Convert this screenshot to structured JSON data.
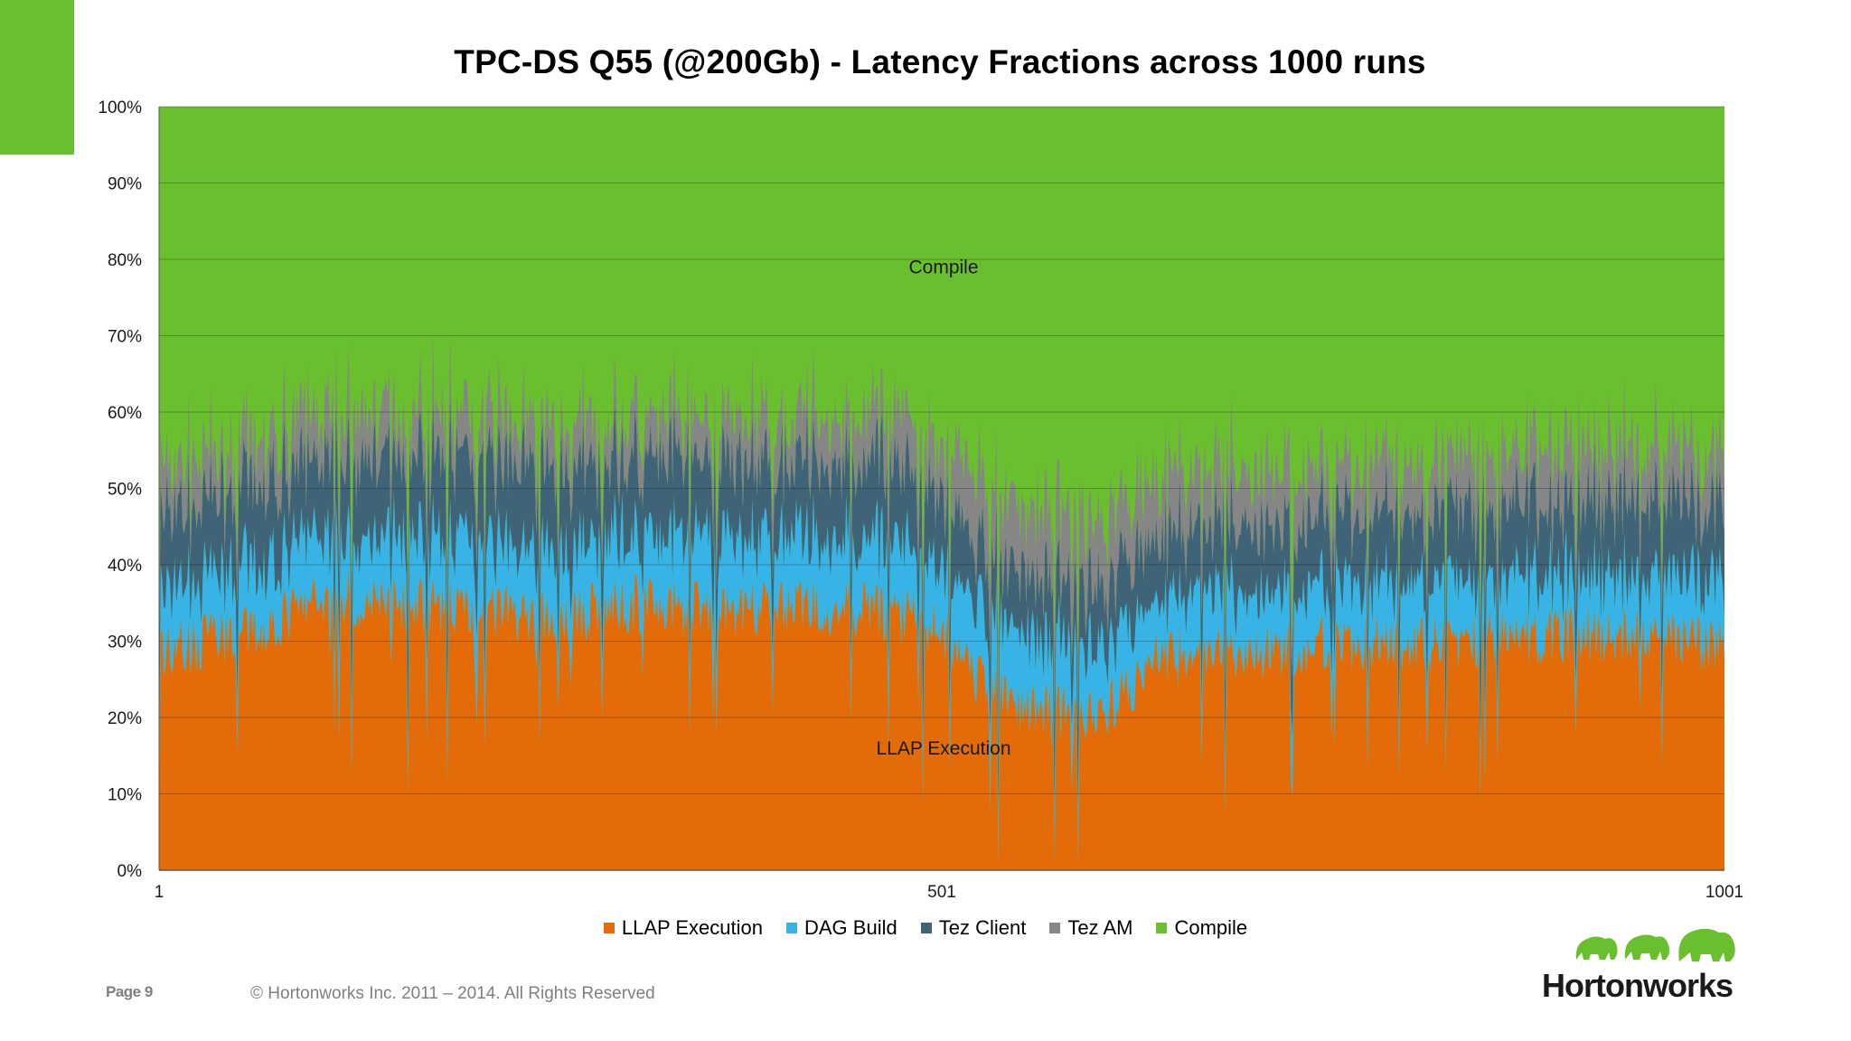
{
  "brand": {
    "accent": "#6abf2e",
    "logo_text": "Hortonworks"
  },
  "footer": {
    "page_label": "Page 9",
    "copyright": "© Hortonworks Inc. 2011 – 2014. All Rights Reserved"
  },
  "chart_data": {
    "type": "area",
    "stacked": true,
    "percent_stacked": true,
    "title": "TPC-DS Q55 (@200Gb) - Latency Fractions across 1000 runs",
    "xlabel": "",
    "ylabel": "",
    "ylim": [
      0,
      100
    ],
    "x_range": [
      1,
      1001
    ],
    "x_ticks": [
      "1",
      "501",
      "1001"
    ],
    "y_ticks": [
      "0%",
      "10%",
      "20%",
      "30%",
      "40%",
      "50%",
      "60%",
      "70%",
      "80%",
      "90%",
      "100%"
    ],
    "grid": true,
    "legend_position": "bottom",
    "annotations": [
      {
        "text": "Compile",
        "x": 501,
        "y": 79
      },
      {
        "text": "LLAP Execution",
        "x": 501,
        "y": 16
      }
    ],
    "series": [
      {
        "name": "LLAP Execution",
        "color": "#e36c09",
        "approx_trend": [
          [
            1,
            29
          ],
          [
            60,
            31
          ],
          [
            110,
            36
          ],
          [
            160,
            35
          ],
          [
            200,
            34
          ],
          [
            260,
            33
          ],
          [
            300,
            35
          ],
          [
            370,
            34
          ],
          [
            420,
            35
          ],
          [
            480,
            33
          ],
          [
            505,
            31
          ],
          [
            520,
            25
          ],
          [
            560,
            21
          ],
          [
            600,
            20
          ],
          [
            640,
            28
          ],
          [
            700,
            28
          ],
          [
            760,
            30
          ],
          [
            840,
            30
          ],
          [
            900,
            31
          ],
          [
            960,
            31
          ],
          [
            1001,
            29
          ]
        ]
      },
      {
        "name": "DAG Build",
        "color": "#38b3e6",
        "approx_trend": [
          [
            1,
            8
          ],
          [
            100,
            9
          ],
          [
            200,
            9
          ],
          [
            300,
            9
          ],
          [
            400,
            9
          ],
          [
            500,
            9
          ],
          [
            520,
            9
          ],
          [
            560,
            10
          ],
          [
            640,
            8
          ],
          [
            700,
            8
          ],
          [
            800,
            8
          ],
          [
            900,
            8
          ],
          [
            1001,
            8
          ]
        ]
      },
      {
        "name": "Tez Client",
        "color": "#3f6377",
        "approx_trend": [
          [
            1,
            10
          ],
          [
            100,
            10
          ],
          [
            200,
            11
          ],
          [
            300,
            10
          ],
          [
            400,
            10
          ],
          [
            505,
            10
          ],
          [
            520,
            8
          ],
          [
            600,
            8
          ],
          [
            700,
            9
          ],
          [
            800,
            9
          ],
          [
            900,
            10
          ],
          [
            1001,
            10
          ]
        ]
      },
      {
        "name": "Tez AM",
        "color": "#868686",
        "approx_trend": [
          [
            1,
            6
          ],
          [
            100,
            6
          ],
          [
            200,
            6
          ],
          [
            300,
            5
          ],
          [
            400,
            6
          ],
          [
            505,
            7
          ],
          [
            520,
            9
          ],
          [
            600,
            9
          ],
          [
            700,
            7
          ],
          [
            800,
            7
          ],
          [
            900,
            7
          ],
          [
            1001,
            7
          ]
        ]
      },
      {
        "name": "Compile",
        "color": "#6abf2e",
        "note_remainder": true
      }
    ]
  }
}
